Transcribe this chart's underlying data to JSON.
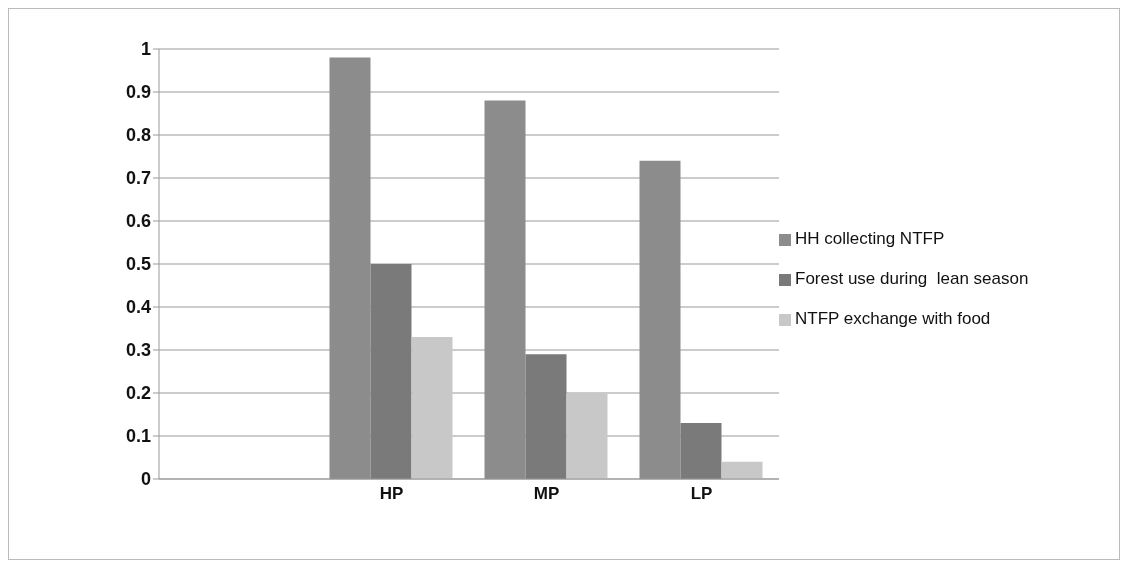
{
  "chart_data": {
    "type": "bar",
    "categories": [
      null,
      "HP",
      "MP",
      "LP"
    ],
    "series": [
      {
        "name": "HH collecting NTFP",
        "color": "#8c8c8c",
        "values": [
          null,
          0.98,
          0.88,
          0.74
        ]
      },
      {
        "name": "Forest use during  lean season",
        "color": "#7a7a7a",
        "values": [
          null,
          0.5,
          0.29,
          0.13
        ]
      },
      {
        "name": "NTFP exchange with food",
        "color": "#c8c8c8",
        "values": [
          null,
          0.33,
          0.2,
          0.04
        ]
      }
    ],
    "ylim": [
      0,
      1
    ],
    "yticks": [
      0,
      0.1,
      0.2,
      0.3,
      0.4,
      0.5,
      0.6,
      0.7,
      0.8,
      0.9,
      1
    ],
    "grid": "y",
    "legend": "right"
  }
}
